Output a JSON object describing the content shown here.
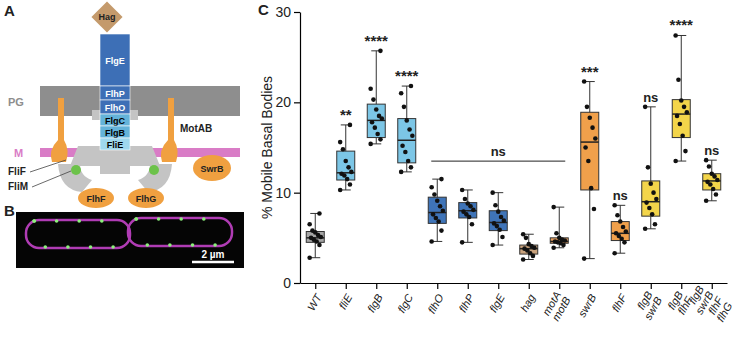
{
  "panel_labels": [
    "A",
    "B",
    "C"
  ],
  "diagram": {
    "nodes": [
      {
        "label": "Hag"
      },
      {
        "label": "FlgE"
      },
      {
        "label": "FlhP"
      },
      {
        "label": "FlhO"
      },
      {
        "label": "FlgC"
      },
      {
        "label": "FlgB"
      },
      {
        "label": "FliE"
      },
      {
        "label": "PG"
      },
      {
        "label": "M"
      },
      {
        "label": "MotAB"
      },
      {
        "label": "FliF"
      },
      {
        "label": "FliM"
      },
      {
        "label": "SwrB"
      },
      {
        "label": "FlhF"
      },
      {
        "label": "FlhG"
      }
    ]
  },
  "image": {
    "scale_bar": "2 µm"
  },
  "chart_data": {
    "type": "box",
    "y_label": "% Mobile Basal Bodies",
    "categories": [
      "WT",
      "fliE",
      "flgB",
      "flgC",
      "flhO",
      "flhP",
      "flgE",
      "hag",
      "motA motB",
      "swrB",
      "flhF",
      "flgB swrB",
      "flgB flhF",
      "flgB swrB flhF flhG"
    ],
    "colors": [
      "#a6a6a6",
      "#7cc6e6",
      "#7cc6e6",
      "#7cc6e6",
      "#3f74b8",
      "#3f74b8",
      "#3f74b8",
      "#c9a27c",
      "#e9a262",
      "#f0a04b",
      "#f0a04b",
      "#f3d54a",
      "#f3d54a",
      "#f3d54a"
    ],
    "boxes": [
      {
        "min": 2.8,
        "q1": 4.5,
        "median": 5.0,
        "q3": 5.7,
        "max": 7.7,
        "points": [
          2.8,
          4.2,
          4.6,
          4.8,
          5.0,
          5.1,
          5.3,
          5.6,
          5.8,
          6.5,
          7.7
        ]
      },
      {
        "min": 10.3,
        "q1": 11.4,
        "median": 12.2,
        "q3": 14.6,
        "max": 17.5,
        "points": [
          10.3,
          10.9,
          11.5,
          11.9,
          12.1,
          12.3,
          12.8,
          13.5,
          14.8,
          15.6,
          17.5
        ]
      },
      {
        "min": 15.4,
        "q1": 16.1,
        "median": 18.0,
        "q3": 19.8,
        "max": 25.7,
        "points": [
          15.4,
          15.9,
          16.5,
          17.2,
          17.8,
          18.2,
          18.5,
          19.2,
          20.3,
          21.5,
          25.7
        ]
      },
      {
        "min": 12.3,
        "q1": 13.3,
        "median": 15.8,
        "q3": 18.2,
        "max": 21.8,
        "points": [
          12.3,
          12.8,
          13.5,
          14.5,
          15.2,
          16.3,
          17.0,
          18.0,
          19.5,
          21.0,
          21.8
        ]
      },
      {
        "min": 4.6,
        "q1": 6.6,
        "median": 7.8,
        "q3": 9.5,
        "max": 11.5,
        "points": [
          4.6,
          5.8,
          6.8,
          7.2,
          7.6,
          8.0,
          8.5,
          9.1,
          9.8,
          10.6,
          11.5
        ]
      },
      {
        "min": 4.5,
        "q1": 7.2,
        "median": 8.0,
        "q3": 8.9,
        "max": 10.3,
        "points": [
          4.5,
          6.5,
          7.3,
          7.6,
          7.9,
          8.1,
          8.5,
          8.8,
          9.3,
          10.3
        ]
      },
      {
        "min": 4.2,
        "q1": 5.8,
        "median": 6.7,
        "q3": 8.0,
        "max": 10.0,
        "points": [
          4.2,
          5.1,
          5.9,
          6.3,
          6.6,
          6.9,
          7.3,
          7.9,
          8.6,
          10.0
        ]
      },
      {
        "min": 2.6,
        "q1": 3.2,
        "median": 3.8,
        "q3": 4.2,
        "max": 5.4,
        "points": [
          2.6,
          3.0,
          3.3,
          3.6,
          3.8,
          3.9,
          4.1,
          4.3,
          5.0,
          5.4
        ]
      },
      {
        "min": 3.9,
        "q1": 4.4,
        "median": 4.6,
        "q3": 5.0,
        "max": 8.4,
        "points": [
          3.9,
          4.2,
          4.4,
          4.5,
          4.6,
          4.7,
          4.8,
          5.0,
          5.5,
          8.4
        ]
      },
      {
        "min": 2.7,
        "q1": 10.3,
        "median": 15.6,
        "q3": 18.9,
        "max": 22.3,
        "points": [
          2.7,
          8.2,
          10.5,
          13.5,
          15.0,
          16.0,
          17.2,
          18.3,
          19.5,
          22.3
        ]
      },
      {
        "min": 3.3,
        "q1": 4.7,
        "median": 5.5,
        "q3": 6.8,
        "max": 8.6,
        "points": [
          3.3,
          4.5,
          4.9,
          5.2,
          5.5,
          5.7,
          6.2,
          6.8,
          7.5,
          8.6
        ]
      },
      {
        "min": 6.0,
        "q1": 7.4,
        "median": 9.0,
        "q3": 11.3,
        "max": 19.5,
        "points": [
          6.0,
          6.5,
          7.6,
          8.3,
          8.9,
          9.3,
          10.0,
          11.0,
          12.8,
          19.5
        ]
      },
      {
        "min": 13.5,
        "q1": 16.1,
        "median": 18.7,
        "q3": 20.3,
        "max": 27.4,
        "points": [
          13.5,
          14.6,
          16.3,
          17.6,
          18.5,
          18.9,
          19.5,
          20.2,
          22.5,
          27.4
        ]
      },
      {
        "min": 9.1,
        "q1": 10.3,
        "median": 11.3,
        "q3": 12.1,
        "max": 13.6,
        "points": [
          9.1,
          9.8,
          10.4,
          10.9,
          11.2,
          11.4,
          11.8,
          12.1,
          12.9,
          13.6
        ]
      }
    ],
    "annotations": [
      {
        "text": "**",
        "category": "fliE"
      },
      {
        "text": "****",
        "category": "flgB"
      },
      {
        "text": "****",
        "category": "flgC"
      },
      {
        "text": "ns",
        "from": "flhO",
        "to": "motA motB"
      },
      {
        "text": "***",
        "category": "swrB"
      },
      {
        "text": "ns",
        "category": "flhF"
      },
      {
        "text": "ns",
        "category": "flgB swrB"
      },
      {
        "text": "****",
        "category": "flgB flhF"
      },
      {
        "text": "ns",
        "category": "flgB swrB flhF flhG"
      }
    ],
    "ylim": [
      0,
      30
    ],
    "yticks": [
      0,
      10,
      20,
      30
    ],
    "grid": false
  }
}
